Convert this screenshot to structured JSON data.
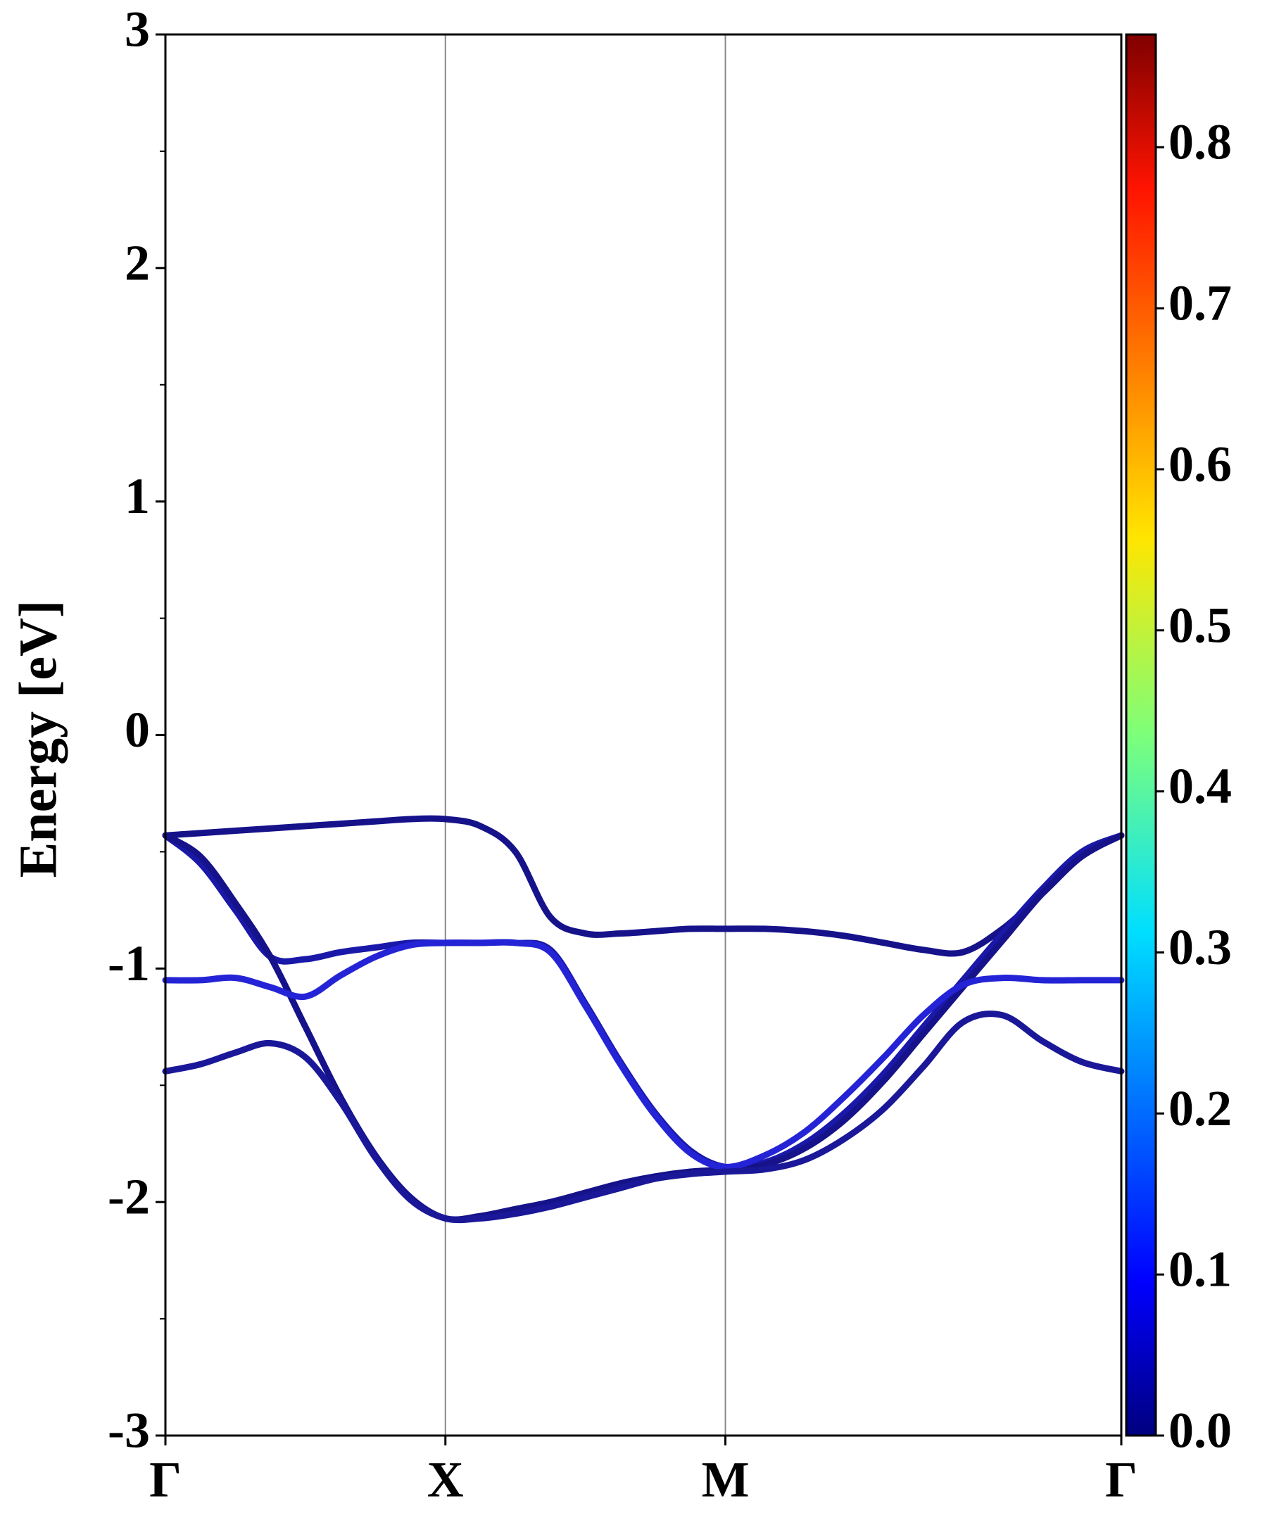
{
  "chart_data": {
    "type": "line",
    "ylabel": "Energy [eV]",
    "x": [
      0,
      0.125,
      0.25,
      0.375,
      0.5,
      0.625,
      0.75,
      0.875,
      1,
      1.125,
      1.25,
      1.375,
      1.5,
      1.625,
      1.75,
      1.875,
      2,
      2.141,
      2.283,
      2.424,
      2.566,
      2.707,
      2.848,
      2.99,
      3.131,
      3.273,
      3.414
    ],
    "series": [
      {
        "color": "#16128a",
        "values": [
          -0.43,
          -0.42,
          -0.41,
          -0.4,
          -0.39,
          -0.38,
          -0.37,
          -0.36,
          -0.36,
          -0.39,
          -0.5,
          -0.78,
          -0.85,
          -0.85,
          -0.84,
          -0.83,
          -0.83,
          -0.83,
          -0.84,
          -0.86,
          -0.89,
          -0.92,
          -0.93,
          -0.83,
          -0.68,
          -0.52,
          -0.43
        ]
      },
      {
        "color": "#1a18a8",
        "values": [
          -0.43,
          -0.55,
          -0.75,
          -0.95,
          -0.96,
          -0.93,
          -0.91,
          -0.89,
          -0.89,
          -0.89,
          -0.89,
          -0.92,
          -1.15,
          -1.4,
          -1.62,
          -1.78,
          -1.85,
          -1.83,
          -1.75,
          -1.62,
          -1.45,
          -1.25,
          -1.05,
          -0.85,
          -0.66,
          -0.5,
          -0.43
        ]
      },
      {
        "color": "#16128a",
        "values": [
          -0.43,
          -0.52,
          -0.72,
          -0.95,
          -1.25,
          -1.55,
          -1.8,
          -1.98,
          -2.07,
          -2.06,
          -2.03,
          -2,
          -1.96,
          -1.92,
          -1.89,
          -1.87,
          -1.86,
          -1.84,
          -1.77,
          -1.65,
          -1.48,
          -1.28,
          -1.08,
          -0.88,
          -0.68,
          -0.52,
          -0.43
        ]
      },
      {
        "color": "#2424d6",
        "values": [
          -1.05,
          -1.05,
          -1.04,
          -1.08,
          -1.12,
          -1.03,
          -0.95,
          -0.9,
          -0.89,
          -0.89,
          -0.89,
          -0.93,
          -1.16,
          -1.41,
          -1.63,
          -1.79,
          -1.85,
          -1.8,
          -1.7,
          -1.55,
          -1.38,
          -1.2,
          -1.07,
          -1.04,
          -1.05,
          -1.05,
          -1.05
        ]
      },
      {
        "color": "#1a1898",
        "values": [
          -1.44,
          -1.41,
          -1.36,
          -1.32,
          -1.38,
          -1.57,
          -1.81,
          -1.99,
          -2.07,
          -2.07,
          -2.05,
          -2.02,
          -1.98,
          -1.94,
          -1.9,
          -1.88,
          -1.87,
          -1.86,
          -1.82,
          -1.73,
          -1.6,
          -1.42,
          -1.23,
          -1.2,
          -1.31,
          -1.4,
          -1.44
        ]
      }
    ],
    "xlim": [
      0,
      3.414
    ],
    "xticks": [
      {
        "value": 0,
        "label": "Γ"
      },
      {
        "value": 1,
        "label": "X"
      },
      {
        "value": 2,
        "label": "M"
      },
      {
        "value": 3.414,
        "label": "Γ"
      }
    ],
    "ylim": [
      -3,
      3
    ],
    "yticks": [
      -3,
      -2,
      -1,
      0,
      1,
      2,
      3
    ],
    "grid": "x",
    "colorbar": {
      "colormap": "jet",
      "clim": [
        0,
        0.87
      ],
      "ticks": [
        {
          "value": 0,
          "label": "0.0"
        },
        {
          "value": 0.1,
          "label": "0.1"
        },
        {
          "value": 0.2,
          "label": "0.2"
        },
        {
          "value": 0.3,
          "label": "0.3"
        },
        {
          "value": 0.4,
          "label": "0.4"
        },
        {
          "value": 0.5,
          "label": "0.5"
        },
        {
          "value": 0.6,
          "label": "0.6"
        },
        {
          "value": 0.7,
          "label": "0.7"
        },
        {
          "value": 0.8,
          "label": "0.8"
        }
      ]
    }
  }
}
